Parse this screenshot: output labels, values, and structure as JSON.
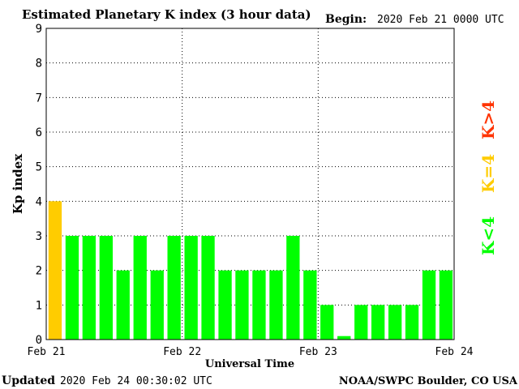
{
  "chart_data": {
    "type": "bar",
    "title": "Estimated Planetary K index (3 hour data)",
    "begin_label": "Begin:",
    "begin_value": "2020 Feb 21 0000 UTC",
    "xlabel": "Universal Time",
    "ylabel": "Kp index",
    "ylim": [
      0,
      9
    ],
    "yticks": [
      "0",
      "1",
      "2",
      "3",
      "4",
      "5",
      "6",
      "7",
      "8",
      "9"
    ],
    "xticks": [
      "Feb 21",
      "Feb 22",
      "Feb 23",
      "Feb 24"
    ],
    "grid": true,
    "values": [
      4,
      3,
      3,
      3,
      2,
      3,
      2,
      3,
      3,
      3,
      2,
      2,
      2,
      2,
      3,
      2,
      1,
      0.1,
      1,
      1,
      1,
      1,
      2,
      2
    ],
    "legend": {
      "placement": "right",
      "entries": [
        {
          "label": "K<4",
          "color": "#00ff00"
        },
        {
          "label": "K=4",
          "color": "#ffcc00"
        },
        {
          "label": "K>4",
          "color": "#ff3300"
        }
      ]
    },
    "colors": {
      "below4": "#00ff00",
      "equal4": "#ffcc00",
      "above4": "#ff3300",
      "grid": "#000000"
    }
  },
  "footer": {
    "updated_label": "Updated",
    "updated_value": "2020 Feb 24 00:30:02 UTC",
    "source": "NOAA/SWPC Boulder, CO USA"
  }
}
